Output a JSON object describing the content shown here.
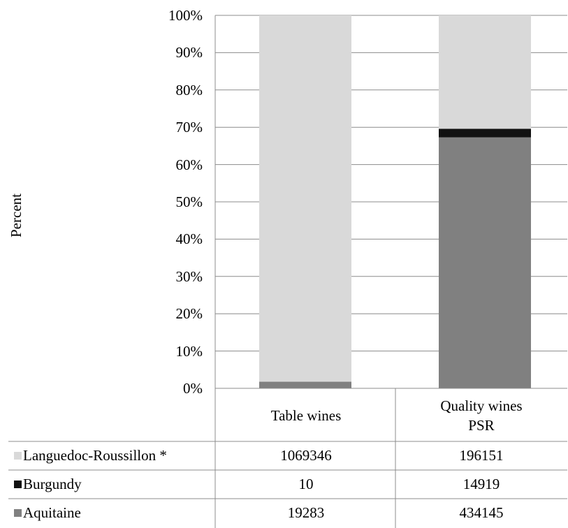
{
  "chart_data": {
    "type": "bar",
    "stacked": "percent",
    "ylabel": "Percent",
    "ylim": [
      0,
      100
    ],
    "y_ticks": [
      "0%",
      "10%",
      "20%",
      "30%",
      "40%",
      "50%",
      "60%",
      "70%",
      "80%",
      "90%",
      "100%"
    ],
    "grid": true,
    "legend": "data table at bottom",
    "categories": [
      {
        "line1": "Table wines",
        "line2": ""
      },
      {
        "line1": "Quality wines",
        "line2": "PSR"
      }
    ],
    "series": [
      {
        "name": "Aquitaine",
        "color": "#808080",
        "labels": [
          "19283",
          "434145"
        ],
        "values": [
          19283,
          434145
        ]
      },
      {
        "name": "Burgundy",
        "color": "#111111",
        "labels": [
          "10",
          "14919"
        ],
        "values": [
          10,
          14919
        ]
      },
      {
        "name": "Languedoc-Roussillon *",
        "color": "#d9d9d9",
        "labels": [
          "1069346",
          "196151"
        ],
        "values": [
          1069346,
          196151
        ]
      }
    ],
    "table_order": [
      2,
      1,
      0
    ]
  }
}
